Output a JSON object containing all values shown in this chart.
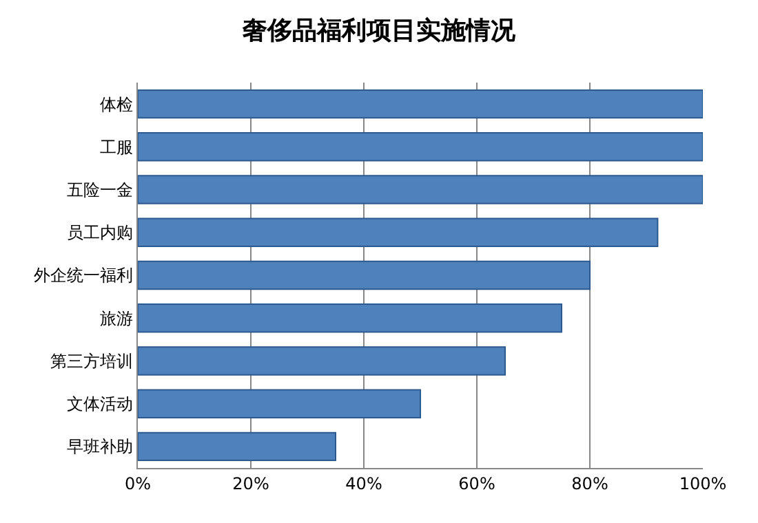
{
  "chart_data": {
    "type": "bar",
    "orientation": "horizontal",
    "title": "奢侈品福利项目实施情况",
    "categories": [
      "体检",
      "工服",
      "五险一金",
      "员工内购",
      "外企统一福利",
      "旅游",
      "第三方培训",
      "文体活动",
      "早班补助"
    ],
    "values": [
      100,
      100,
      100,
      92,
      80,
      75,
      65,
      50,
      35
    ],
    "color": "#4f81bd",
    "xlim": [
      0,
      100
    ],
    "xticks": [
      {
        "value": 0,
        "label": "0%"
      },
      {
        "value": 20,
        "label": "20%"
      },
      {
        "value": 40,
        "label": "40%"
      },
      {
        "value": 60,
        "label": "60%"
      },
      {
        "value": 80,
        "label": "80%"
      },
      {
        "value": 100,
        "label": "100%"
      }
    ],
    "grid": "x"
  }
}
